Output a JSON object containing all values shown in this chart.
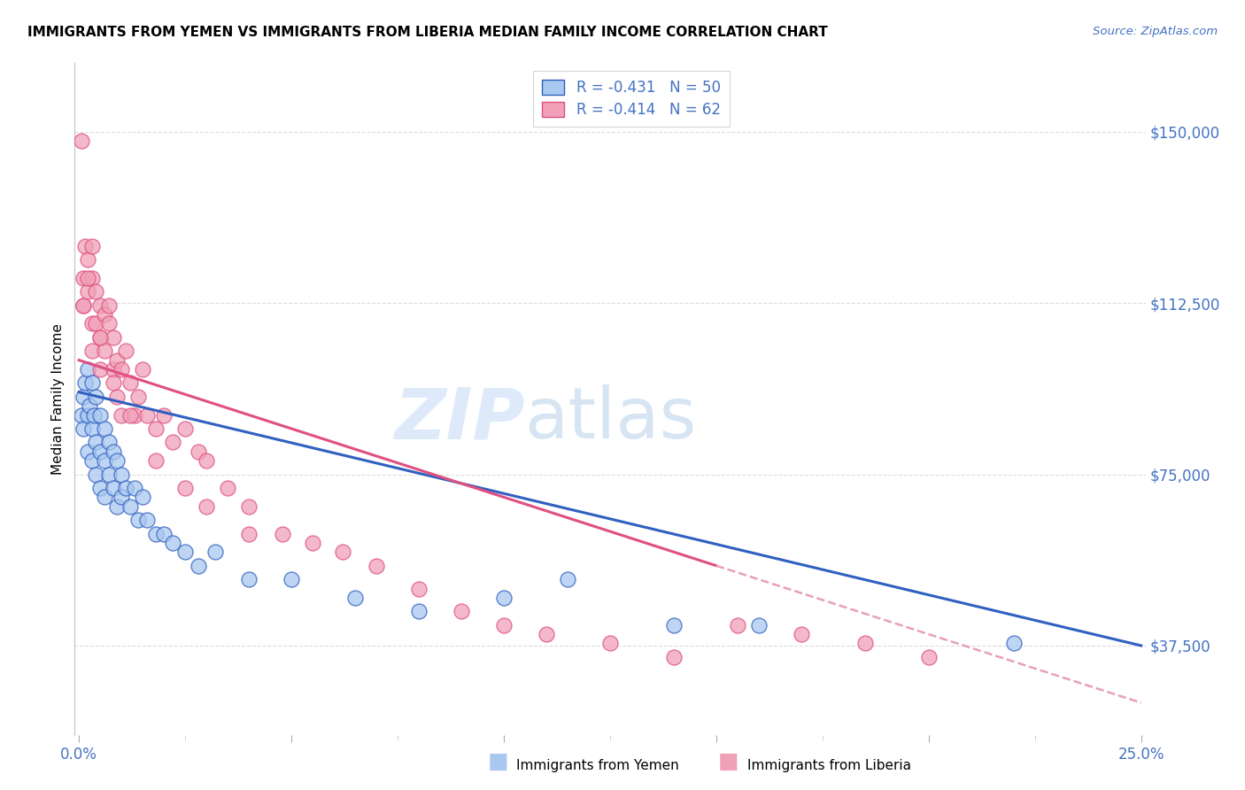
{
  "title": "IMMIGRANTS FROM YEMEN VS IMMIGRANTS FROM LIBERIA MEDIAN FAMILY INCOME CORRELATION CHART",
  "source": "Source: ZipAtlas.com",
  "ylabel": "Median Family Income",
  "yticks": [
    37500,
    75000,
    112500,
    150000
  ],
  "ytick_labels": [
    "$37,500",
    "$75,000",
    "$112,500",
    "$150,000"
  ],
  "xlim": [
    -0.001,
    0.251
  ],
  "ylim": [
    18000,
    165000
  ],
  "legend_r1": "-0.431",
  "legend_n1": "50",
  "legend_r2": "-0.414",
  "legend_n2": "62",
  "color_yemen": "#A8C8F0",
  "color_liberia": "#F0A0B8",
  "color_blue": "#3060C0",
  "color_pink": "#E05080",
  "color_pink_dashed": "#E8A0B8",
  "regression_blue_x0": 0.0,
  "regression_blue_y0": 93000,
  "regression_blue_x1": 0.25,
  "regression_blue_y1": 37500,
  "regression_pink_solid_x0": 0.0,
  "regression_pink_solid_y0": 100000,
  "regression_pink_solid_x1": 0.15,
  "regression_pink_solid_y1": 55000,
  "regression_pink_dashed_x0": 0.15,
  "regression_pink_dashed_y0": 55000,
  "regression_pink_dashed_x1": 0.25,
  "regression_pink_dashed_y1": 25000,
  "yemen_x": [
    0.0005,
    0.001,
    0.001,
    0.0015,
    0.002,
    0.002,
    0.002,
    0.0025,
    0.003,
    0.003,
    0.003,
    0.0035,
    0.004,
    0.004,
    0.004,
    0.005,
    0.005,
    0.005,
    0.006,
    0.006,
    0.006,
    0.007,
    0.007,
    0.008,
    0.008,
    0.009,
    0.009,
    0.01,
    0.01,
    0.011,
    0.012,
    0.013,
    0.014,
    0.015,
    0.016,
    0.018,
    0.02,
    0.022,
    0.025,
    0.028,
    0.032,
    0.04,
    0.05,
    0.065,
    0.08,
    0.1,
    0.115,
    0.14,
    0.16,
    0.22
  ],
  "yemen_y": [
    88000,
    92000,
    85000,
    95000,
    98000,
    88000,
    80000,
    90000,
    95000,
    85000,
    78000,
    88000,
    92000,
    82000,
    75000,
    88000,
    80000,
    72000,
    85000,
    78000,
    70000,
    82000,
    75000,
    80000,
    72000,
    78000,
    68000,
    75000,
    70000,
    72000,
    68000,
    72000,
    65000,
    70000,
    65000,
    62000,
    62000,
    60000,
    58000,
    55000,
    58000,
    52000,
    52000,
    48000,
    45000,
    48000,
    52000,
    42000,
    42000,
    38000
  ],
  "liberia_x": [
    0.0005,
    0.001,
    0.001,
    0.0015,
    0.002,
    0.002,
    0.003,
    0.003,
    0.003,
    0.004,
    0.004,
    0.005,
    0.005,
    0.005,
    0.006,
    0.006,
    0.007,
    0.007,
    0.008,
    0.008,
    0.009,
    0.009,
    0.01,
    0.01,
    0.011,
    0.012,
    0.013,
    0.014,
    0.015,
    0.016,
    0.018,
    0.02,
    0.022,
    0.025,
    0.028,
    0.03,
    0.035,
    0.04,
    0.048,
    0.055,
    0.062,
    0.07,
    0.08,
    0.09,
    0.1,
    0.11,
    0.125,
    0.14,
    0.155,
    0.17,
    0.185,
    0.2,
    0.018,
    0.025,
    0.03,
    0.04,
    0.008,
    0.012,
    0.003,
    0.001,
    0.002,
    0.005
  ],
  "liberia_y": [
    148000,
    118000,
    112000,
    125000,
    122000,
    115000,
    118000,
    108000,
    102000,
    115000,
    108000,
    112000,
    105000,
    98000,
    110000,
    102000,
    112000,
    108000,
    105000,
    98000,
    100000,
    92000,
    98000,
    88000,
    102000,
    95000,
    88000,
    92000,
    98000,
    88000,
    85000,
    88000,
    82000,
    85000,
    80000,
    78000,
    72000,
    68000,
    62000,
    60000,
    58000,
    55000,
    50000,
    45000,
    42000,
    40000,
    38000,
    35000,
    42000,
    40000,
    38000,
    35000,
    78000,
    72000,
    68000,
    62000,
    95000,
    88000,
    125000,
    112000,
    118000,
    105000
  ]
}
